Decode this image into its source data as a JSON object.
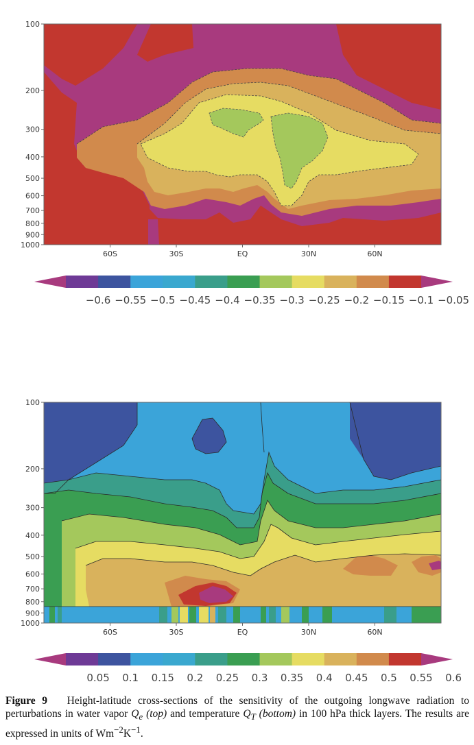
{
  "chart_data": [
    {
      "type": "heatmap",
      "panel": "top",
      "x_ticks": [
        "60S",
        "30S",
        "EQ",
        "30N",
        "60N"
      ],
      "x_values": [
        -60,
        -30,
        0,
        30,
        60
      ],
      "xlim": [
        -90,
        90
      ],
      "y_ticks": [
        "100",
        "200",
        "300",
        "400",
        "500",
        "600",
        "700",
        "800",
        "900",
        "1000"
      ],
      "y_values": [
        100,
        200,
        300,
        400,
        500,
        600,
        700,
        800,
        900,
        1000
      ],
      "ylim": [
        1000,
        100
      ],
      "y_scale": "log",
      "colorbar_labels": [
        "−0.6",
        "−0.55",
        "−0.5",
        "−0.45",
        "−0.4",
        "−0.35",
        "−0.3",
        "−0.25",
        "−0.2",
        "−0.15",
        "−0.1",
        "−0.05"
      ],
      "colorbar_levels": [
        -0.6,
        -0.55,
        -0.5,
        -0.45,
        -0.4,
        -0.35,
        -0.3,
        -0.25,
        -0.2,
        -0.15,
        -0.1,
        -0.05
      ],
      "colors": [
        "#a83a7e",
        "#6e3a96",
        "#3d549f",
        "#3ba4d9",
        "#3aa8cf",
        "#3a9e8a",
        "#3a9e52",
        "#a4c85c",
        "#e6dc62",
        "#d9b25c",
        "#d18a4c",
        "#c2372f",
        "#a83a7e"
      ]
    },
    {
      "type": "heatmap",
      "panel": "bottom",
      "x_ticks": [
        "60S",
        "30S",
        "EQ",
        "30N",
        "60N"
      ],
      "x_values": [
        -60,
        -30,
        0,
        30,
        60
      ],
      "xlim": [
        -90,
        90
      ],
      "y_ticks": [
        "100",
        "200",
        "300",
        "400",
        "500",
        "600",
        "700",
        "800",
        "900",
        "1000"
      ],
      "y_values": [
        100,
        200,
        300,
        400,
        500,
        600,
        700,
        800,
        900,
        1000
      ],
      "ylim": [
        1000,
        100
      ],
      "y_scale": "log",
      "colorbar_labels": [
        "0.05",
        "0.1",
        "0.15",
        "0.2",
        "0.25",
        "0.3",
        "0.35",
        "0.4",
        "0.45",
        "0.5",
        "0.55",
        "0.6"
      ],
      "colorbar_levels": [
        0.05,
        0.1,
        0.15,
        0.2,
        0.25,
        0.3,
        0.35,
        0.4,
        0.45,
        0.5,
        0.55,
        0.6
      ],
      "colors": [
        "#a83a7e",
        "#6e3a96",
        "#3d549f",
        "#3ba4d9",
        "#3aa8cf",
        "#3a9e8a",
        "#3a9e52",
        "#a4c85c",
        "#e6dc62",
        "#d9b25c",
        "#d18a4c",
        "#c2372f",
        "#a83a7e"
      ]
    }
  ],
  "caption": {
    "label": "Figure 9",
    "text_1": "Height-latitude cross-sections of the sensitivity of the outgoing longwave radiation to perturbations in water vapor ",
    "q_e": "Q",
    "q_e_sub": "e",
    "top": "(top)",
    "text_2": " and temperature ",
    "q_t": "Q",
    "q_t_sub": "T",
    "bottom": "(bottom)",
    "text_3": " in 100 hPa thick layers. The results are expressed in units of Wm",
    "sup_1": "−2",
    "k": "K",
    "sup_2": "−1",
    "end": "."
  }
}
